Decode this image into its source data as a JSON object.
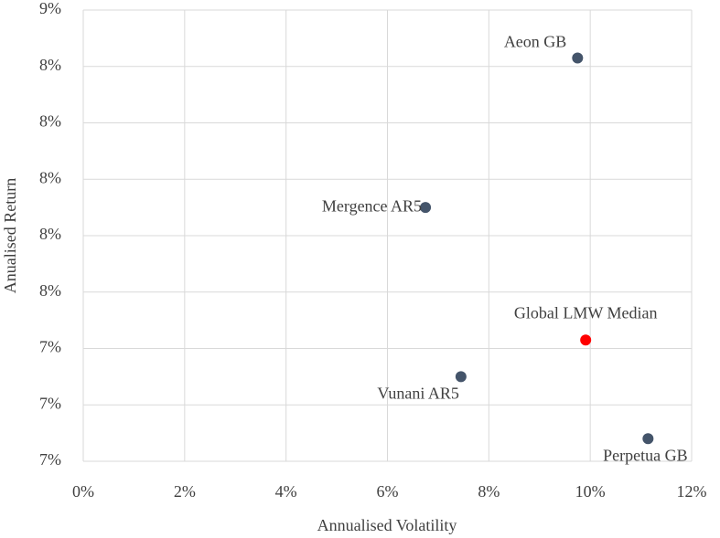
{
  "chart_data": {
    "type": "scatter",
    "xlabel": "Annualised Volatility",
    "ylabel": "Anualised Return",
    "series": [
      {
        "name": "Aeon GB",
        "color": "#44546a",
        "x": [
          9.75
        ],
        "values": [
          8.33
        ]
      },
      {
        "name": "Mergence AR5",
        "color": "#44546a",
        "x": [
          6.75
        ],
        "values": [
          7.8
        ]
      },
      {
        "name": "Global LMW Median",
        "color": "#ff0000",
        "x": [
          9.91
        ],
        "values": [
          7.33
        ]
      },
      {
        "name": "Vunani AR5",
        "color": "#44546a",
        "x": [
          7.45
        ],
        "values": [
          7.2
        ]
      },
      {
        "name": "Perpetua GB",
        "color": "#44546a",
        "x": [
          11.14
        ],
        "values": [
          6.98
        ]
      }
    ],
    "xlim": [
      0,
      12
    ],
    "xticks": [
      {
        "value": 0,
        "label": "0%"
      },
      {
        "value": 2,
        "label": "2%"
      },
      {
        "value": 4,
        "label": "4%"
      },
      {
        "value": 6,
        "label": "6%"
      },
      {
        "value": 8,
        "label": "8%"
      },
      {
        "value": 10,
        "label": "10%"
      },
      {
        "value": 12,
        "label": "12%"
      }
    ],
    "ylim": [
      6.9,
      8.5
    ],
    "yticks": [
      {
        "value": 6.9,
        "label": "7%"
      },
      {
        "value": 7.1,
        "label": "7%"
      },
      {
        "value": 7.3,
        "label": "7%"
      },
      {
        "value": 7.5,
        "label": "8%"
      },
      {
        "value": 7.7,
        "label": "8%"
      },
      {
        "value": 7.9,
        "label": "8%"
      },
      {
        "value": 8.1,
        "label": "8%"
      },
      {
        "value": 8.3,
        "label": "8%"
      },
      {
        "value": 8.5,
        "label": "9%"
      }
    ],
    "grid": true
  }
}
